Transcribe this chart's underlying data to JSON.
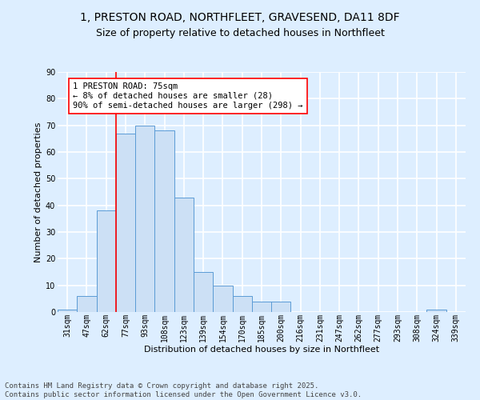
{
  "title_line1": "1, PRESTON ROAD, NORTHFLEET, GRAVESEND, DA11 8DF",
  "title_line2": "Size of property relative to detached houses in Northfleet",
  "xlabel": "Distribution of detached houses by size in Northfleet",
  "ylabel": "Number of detached properties",
  "bar_color": "#cce0f5",
  "bar_edge_color": "#5b9bd5",
  "background_color": "#ddeeff",
  "grid_color": "#ffffff",
  "categories": [
    "31sqm",
    "47sqm",
    "62sqm",
    "77sqm",
    "93sqm",
    "108sqm",
    "123sqm",
    "139sqm",
    "154sqm",
    "170sqm",
    "185sqm",
    "200sqm",
    "216sqm",
    "231sqm",
    "247sqm",
    "262sqm",
    "277sqm",
    "293sqm",
    "308sqm",
    "324sqm",
    "339sqm"
  ],
  "values": [
    1,
    6,
    38,
    67,
    70,
    68,
    43,
    15,
    10,
    6,
    4,
    4,
    0,
    0,
    0,
    0,
    0,
    0,
    0,
    1,
    0
  ],
  "ylim": [
    0,
    90
  ],
  "yticks": [
    0,
    10,
    20,
    30,
    40,
    50,
    60,
    70,
    80,
    90
  ],
  "red_line_x": 2.5,
  "annotation_text": "1 PRESTON ROAD: 75sqm\n← 8% of detached houses are smaller (28)\n90% of semi-detached houses are larger (298) →",
  "footer_line1": "Contains HM Land Registry data © Crown copyright and database right 2025.",
  "footer_line2": "Contains public sector information licensed under the Open Government Licence v3.0.",
  "title_fontsize": 10,
  "subtitle_fontsize": 9,
  "axis_label_fontsize": 8,
  "tick_fontsize": 7,
  "annotation_fontsize": 7.5,
  "footer_fontsize": 6.5
}
